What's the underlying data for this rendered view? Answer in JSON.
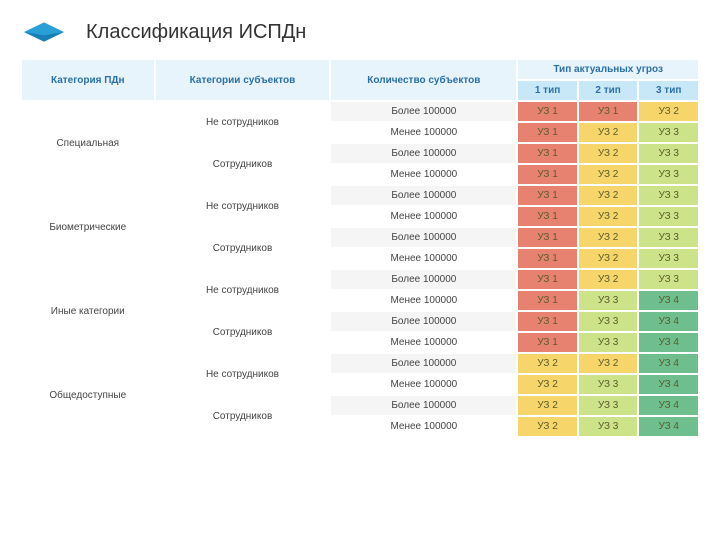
{
  "title": "Классификация ИСПДн",
  "colors": {
    "header_bg": "#e8f4fb",
    "subheader_bg": "#c9e8f7",
    "grey": "#f5f5f5",
    "white": "#ffffff",
    "uz1": "#e88270",
    "uz2": "#f6d66a",
    "uz3": "#cde389",
    "uz4": "#6fbf8e",
    "logo": "#2a9fd6"
  },
  "headers": {
    "pdn_cat": "Категория ПДн",
    "subj_cat": "Категории субъектов",
    "subj_qty": "Количество субъектов",
    "threat_type": "Тип актуальных угроз",
    "type1": "1 тип",
    "type2": "2 тип",
    "type3": "3 тип"
  },
  "subj": {
    "not_emp": "Не сотрудников",
    "emp": "Сотрудников"
  },
  "qty": {
    "more": "Более 100000",
    "less": "Менее 100000"
  },
  "uz": {
    "1": "УЗ 1",
    "2": "УЗ 2",
    "3": "УЗ 3",
    "4": "УЗ 4"
  },
  "categories": [
    "Специальная",
    "Биометрические",
    "Иные категории",
    "Общедоступные"
  ],
  "rows": [
    {
      "q": "more",
      "v": [
        "1",
        "1",
        "2"
      ]
    },
    {
      "q": "less",
      "v": [
        "1",
        "2",
        "3"
      ]
    },
    {
      "q": "more",
      "v": [
        "1",
        "2",
        "3"
      ]
    },
    {
      "q": "less",
      "v": [
        "1",
        "2",
        "3"
      ]
    },
    {
      "q": "more",
      "v": [
        "1",
        "2",
        "3"
      ]
    },
    {
      "q": "less",
      "v": [
        "1",
        "2",
        "3"
      ]
    },
    {
      "q": "more",
      "v": [
        "1",
        "2",
        "3"
      ]
    },
    {
      "q": "less",
      "v": [
        "1",
        "2",
        "3"
      ]
    },
    {
      "q": "more",
      "v": [
        "1",
        "2",
        "3"
      ]
    },
    {
      "q": "less",
      "v": [
        "1",
        "3",
        "4"
      ]
    },
    {
      "q": "more",
      "v": [
        "1",
        "3",
        "4"
      ]
    },
    {
      "q": "less",
      "v": [
        "1",
        "3",
        "4"
      ]
    },
    {
      "q": "more",
      "v": [
        "2",
        "2",
        "4"
      ]
    },
    {
      "q": "less",
      "v": [
        "2",
        "3",
        "4"
      ]
    },
    {
      "q": "more",
      "v": [
        "2",
        "3",
        "4"
      ]
    },
    {
      "q": "less",
      "v": [
        "2",
        "3",
        "4"
      ]
    }
  ]
}
